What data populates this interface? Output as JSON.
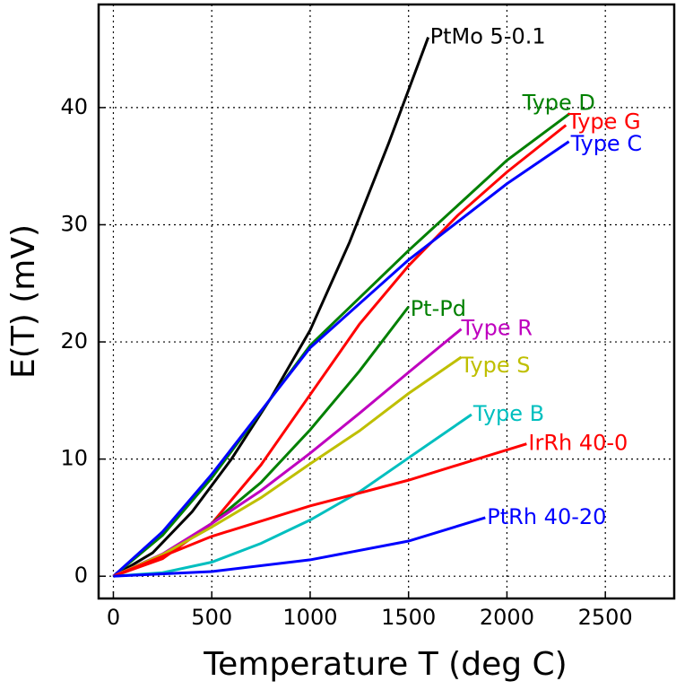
{
  "chart_data": {
    "type": "line",
    "xlabel": "Temperature T (deg C)",
    "ylabel": "E(T) (mV)",
    "xlim": [
      -75,
      2850
    ],
    "ylim": [
      -1.9,
      48.8
    ],
    "xticks": [
      0,
      500,
      1000,
      1500,
      2000,
      2500
    ],
    "yticks": [
      0,
      10,
      20,
      30,
      40
    ],
    "grid": true,
    "series": [
      {
        "name": "PtMo 5-0.1",
        "color": "#000000",
        "x": [
          0,
          200,
          400,
          600,
          800,
          1000,
          1200,
          1400,
          1600
        ],
        "values": [
          0,
          2,
          5.5,
          10,
          15.2,
          21,
          28.5,
          37,
          46
        ]
      },
      {
        "name": "Type D",
        "color": "#008000",
        "x": [
          0,
          250,
          500,
          1000,
          1500,
          2000,
          2320
        ],
        "values": [
          0,
          3.5,
          8.4,
          19.7,
          27.8,
          35.5,
          39.5
        ]
      },
      {
        "name": "Type G",
        "color": "#ff0000",
        "x": [
          0,
          250,
          500,
          750,
          1000,
          1250,
          1500,
          1750,
          2000,
          2300
        ],
        "values": [
          0,
          1.5,
          4.5,
          9.5,
          15.5,
          21.5,
          26.5,
          30.8,
          34.5,
          38.5
        ]
      },
      {
        "name": "Type C",
        "color": "#0000ff",
        "x": [
          0,
          250,
          500,
          1000,
          1500,
          2000,
          2315
        ],
        "values": [
          0,
          3.8,
          8.7,
          19.5,
          27,
          33.5,
          37.1
        ]
      },
      {
        "name": "Pt-Pd",
        "color": "#008000",
        "x": [
          0,
          250,
          500,
          750,
          1000,
          1250,
          1500
        ],
        "values": [
          0,
          1.8,
          4.5,
          8,
          12.5,
          17.5,
          23
        ]
      },
      {
        "name": "Type R",
        "color": "#bf00bf",
        "x": [
          0,
          250,
          500,
          750,
          1000,
          1250,
          1500,
          1768
        ],
        "values": [
          0,
          1.9,
          4.5,
          7.3,
          10.5,
          13.9,
          17.4,
          21.1
        ]
      },
      {
        "name": "Type S",
        "color": "#bfbf00",
        "x": [
          0,
          250,
          500,
          750,
          1000,
          1250,
          1500,
          1768
        ],
        "values": [
          0,
          1.85,
          4.2,
          6.7,
          9.6,
          12.4,
          15.6,
          18.7
        ]
      },
      {
        "name": "Type B",
        "color": "#00bfbf",
        "x": [
          0,
          250,
          500,
          750,
          1000,
          1250,
          1500,
          1820
        ],
        "values": [
          0,
          0.3,
          1.2,
          2.8,
          4.8,
          7.2,
          10.1,
          13.8
        ]
      },
      {
        "name": "IrRh 40-0",
        "color": "#ff0000",
        "x": [
          0,
          500,
          1000,
          1500,
          2100
        ],
        "values": [
          0,
          3.4,
          6,
          8.2,
          11.3
        ]
      },
      {
        "name": "PtRh 40-20",
        "color": "#0000ff",
        "x": [
          0,
          500,
          1000,
          1500,
          1890
        ],
        "values": [
          0,
          0.4,
          1.4,
          3,
          5
        ]
      }
    ]
  }
}
